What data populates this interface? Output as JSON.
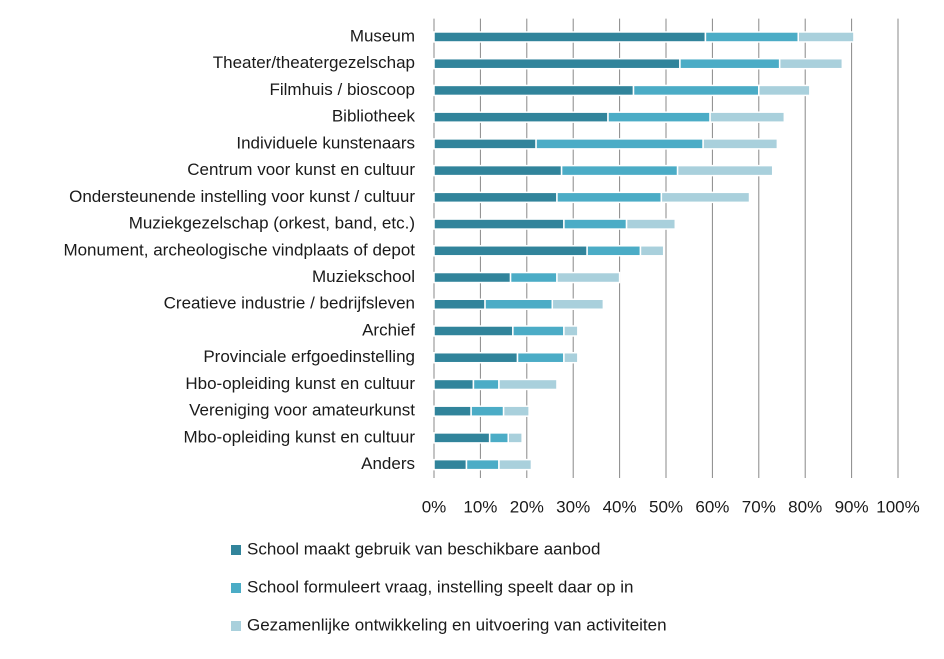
{
  "chart_data": {
    "type": "stacked-bar-horizontal",
    "categories": [
      "Museum",
      "Theater/theatergezelschap",
      "Filmhuis / bioscoop",
      "Bibliotheek",
      "Individuele kunstenaars",
      "Centrum voor kunst en cultuur",
      "Ondersteunende instelling voor kunst / cultuur",
      "Muziekgezelschap (orkest, band, etc.)",
      "Monument, archeologische vindplaats of depot",
      "Muziekschool",
      "Creatieve industrie / bedrijfsleven",
      "Archief",
      "Provinciale erfgoedinstelling",
      "Hbo-opleiding kunst en cultuur",
      "Vereniging voor amateurkunst",
      "Mbo-opleiding kunst en cultuur",
      "Anders"
    ],
    "series": [
      {
        "name": "School maakt gebruik van beschikbare aanbod",
        "color": "#31849b",
        "values": [
          58.5,
          53,
          43,
          37.5,
          22,
          27.5,
          26.5,
          28,
          33,
          16.5,
          11,
          17,
          18,
          8.5,
          8,
          12,
          7
        ]
      },
      {
        "name": "School formuleert vraag, instelling speelt daar op in",
        "color": "#4bacc6",
        "values": [
          20,
          21.5,
          27,
          22,
          36,
          25,
          22.5,
          13.5,
          11.5,
          10,
          14.5,
          11,
          10,
          5.5,
          7,
          4,
          7
        ]
      },
      {
        "name": "Gezamenlijke ontwikkeling en uitvoering van activiteiten",
        "color": "#a9d0dc",
        "values": [
          12,
          13.5,
          11,
          16,
          16,
          20.5,
          19,
          10.5,
          5,
          13.5,
          11,
          3,
          3,
          12.5,
          5.5,
          3,
          7
        ]
      }
    ],
    "xlim": [
      0,
      100
    ],
    "xticks": [
      {
        "value": 0,
        "label": "0%"
      },
      {
        "value": 10,
        "label": "10%"
      },
      {
        "value": 20,
        "label": "20%"
      },
      {
        "value": 30,
        "label": "30%"
      },
      {
        "value": 40,
        "label": "40%"
      },
      {
        "value": 50,
        "label": "50%"
      },
      {
        "value": 60,
        "label": "60%"
      },
      {
        "value": 70,
        "label": "70%"
      },
      {
        "value": 80,
        "label": "80%"
      },
      {
        "value": 90,
        "label": "90%"
      },
      {
        "value": 100,
        "label": "100%"
      }
    ],
    "grid": true,
    "legend": "bottom"
  }
}
